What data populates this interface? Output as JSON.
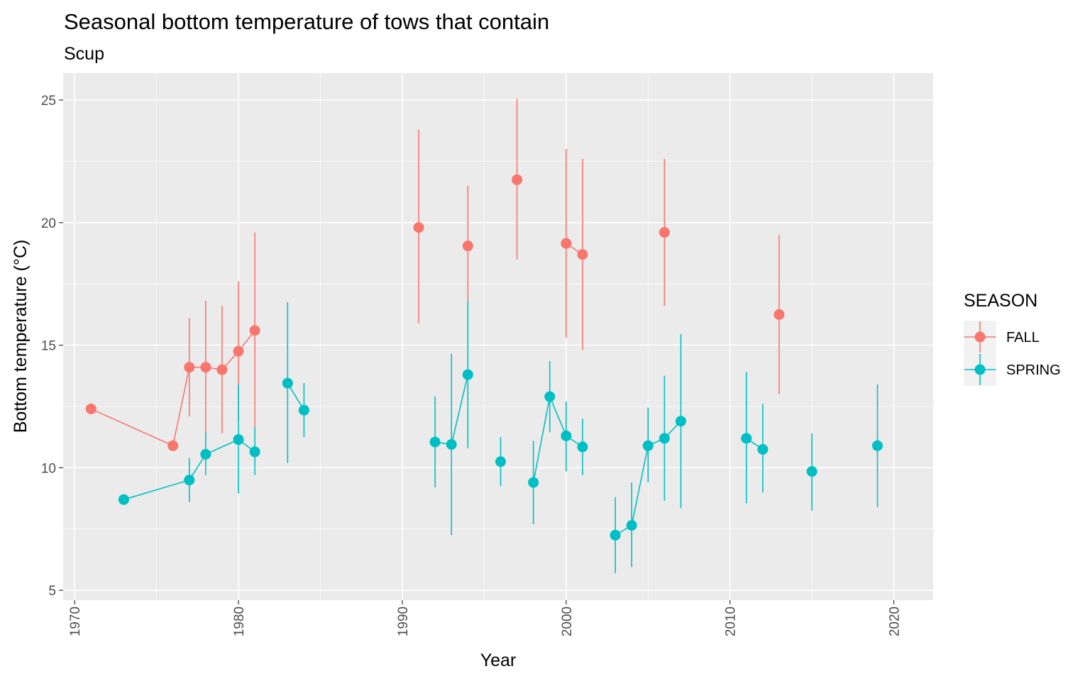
{
  "chart_data": {
    "type": "scatter",
    "title": "Seasonal bottom temperature of tows that contain",
    "subtitle": "Scup",
    "xlabel": "Year",
    "ylabel": "Bottom temperature (°C)",
    "xlim": [
      1969.3,
      2022.4
    ],
    "ylim": [
      4.6,
      26.1
    ],
    "x_ticks": [
      "1970",
      "1980",
      "1990",
      "2000",
      "2010",
      "2020"
    ],
    "y_ticks": [
      "5",
      "10",
      "15",
      "20",
      "25"
    ],
    "grid": true,
    "legend": {
      "title": "SEASON",
      "position": "right"
    },
    "series": [
      {
        "name": "FALL",
        "color": "#F8766D",
        "points": [
          {
            "x": 1971,
            "y": 12.4,
            "ymin": null,
            "ymax": null
          },
          {
            "x": 1976,
            "y": 10.9,
            "ymin": null,
            "ymax": null
          },
          {
            "x": 1977,
            "y": 14.1,
            "ymin": 12.1,
            "ymax": 16.1
          },
          {
            "x": 1978,
            "y": 14.1,
            "ymin": 11.3,
            "ymax": 16.8
          },
          {
            "x": 1979,
            "y": 14.0,
            "ymin": 11.4,
            "ymax": 16.6
          },
          {
            "x": 1980,
            "y": 14.75,
            "ymin": 11.9,
            "ymax": 17.6
          },
          {
            "x": 1981,
            "y": 15.6,
            "ymin": 11.6,
            "ymax": 19.6
          },
          {
            "x": 1991,
            "y": 19.8,
            "ymin": 15.9,
            "ymax": 23.8
          },
          {
            "x": 1994,
            "y": 19.05,
            "ymin": 16.6,
            "ymax": 21.5
          },
          {
            "x": 1997,
            "y": 21.75,
            "ymin": 18.5,
            "ymax": 25.05
          },
          {
            "x": 2000,
            "y": 19.15,
            "ymin": 15.3,
            "ymax": 23.0
          },
          {
            "x": 2001,
            "y": 18.7,
            "ymin": 14.8,
            "ymax": 22.6
          },
          {
            "x": 2006,
            "y": 19.6,
            "ymin": 16.6,
            "ymax": 22.6
          },
          {
            "x": 2013,
            "y": 16.25,
            "ymin": 13.0,
            "ymax": 19.5
          }
        ]
      },
      {
        "name": "SPRING",
        "color": "#00BFC4",
        "points": [
          {
            "x": 1973,
            "y": 8.7,
            "ymin": null,
            "ymax": null
          },
          {
            "x": 1977,
            "y": 9.5,
            "ymin": 8.6,
            "ymax": 10.4
          },
          {
            "x": 1978,
            "y": 10.55,
            "ymin": 9.7,
            "ymax": 11.45
          },
          {
            "x": 1980,
            "y": 11.15,
            "ymin": 8.95,
            "ymax": 13.4
          },
          {
            "x": 1981,
            "y": 10.65,
            "ymin": 9.7,
            "ymax": 11.65
          },
          {
            "x": 1983,
            "y": 13.45,
            "ymin": 10.2,
            "ymax": 16.75
          },
          {
            "x": 1984,
            "y": 12.35,
            "ymin": 11.25,
            "ymax": 13.45
          },
          {
            "x": 1992,
            "y": 11.05,
            "ymin": 9.2,
            "ymax": 12.9
          },
          {
            "x": 1993,
            "y": 10.95,
            "ymin": 7.25,
            "ymax": 14.65
          },
          {
            "x": 1994,
            "y": 13.8,
            "ymin": 10.8,
            "ymax": 16.8
          },
          {
            "x": 1996,
            "y": 10.25,
            "ymin": 9.25,
            "ymax": 11.25
          },
          {
            "x": 1998,
            "y": 9.4,
            "ymin": 7.7,
            "ymax": 11.1
          },
          {
            "x": 1999,
            "y": 12.9,
            "ymin": 11.45,
            "ymax": 14.35
          },
          {
            "x": 2000,
            "y": 11.3,
            "ymin": 9.85,
            "ymax": 12.7
          },
          {
            "x": 2001,
            "y": 10.85,
            "ymin": 9.7,
            "ymax": 12.0
          },
          {
            "x": 2003,
            "y": 7.25,
            "ymin": 5.7,
            "ymax": 8.8
          },
          {
            "x": 2004,
            "y": 7.65,
            "ymin": 5.95,
            "ymax": 9.4
          },
          {
            "x": 2005,
            "y": 10.9,
            "ymin": 9.4,
            "ymax": 12.45
          },
          {
            "x": 2006,
            "y": 11.2,
            "ymin": 8.65,
            "ymax": 13.75
          },
          {
            "x": 2007,
            "y": 11.9,
            "ymin": 8.35,
            "ymax": 15.45
          },
          {
            "x": 2011,
            "y": 11.2,
            "ymin": 8.55,
            "ymax": 13.9
          },
          {
            "x": 2012,
            "y": 10.75,
            "ymin": 9.0,
            "ymax": 12.6
          },
          {
            "x": 2015,
            "y": 9.85,
            "ymin": 8.25,
            "ymax": 11.4
          },
          {
            "x": 2019,
            "y": 10.9,
            "ymin": 8.4,
            "ymax": 13.4
          }
        ]
      }
    ]
  }
}
